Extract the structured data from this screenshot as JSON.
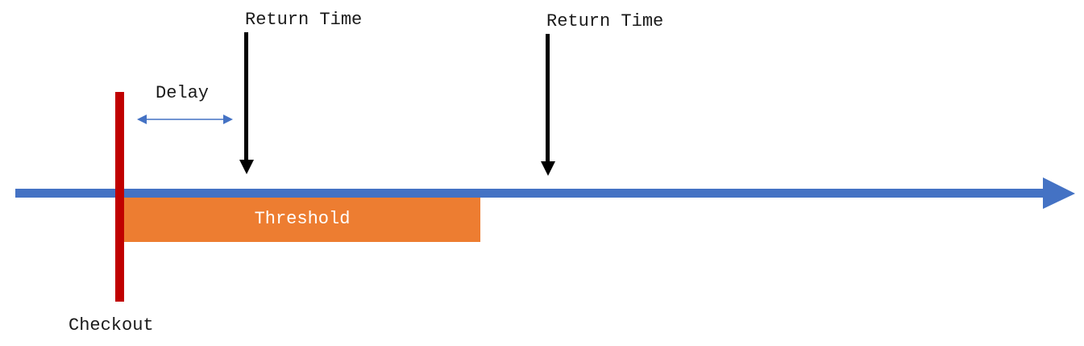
{
  "labels": {
    "return_time_1": "Return Time",
    "return_time_2": "Return Time",
    "delay": "Delay",
    "threshold": "Threshold",
    "checkout": "Checkout"
  },
  "colors": {
    "timeline": "#4472C4",
    "checkout_line": "#C00000",
    "threshold_bar": "#ED7D31",
    "return_arrow": "#000000",
    "delay_arrow": "#4472C4",
    "threshold_text": "#FFFFFF"
  },
  "icons": {
    "timeline": "timeline-arrow-icon",
    "return_marker": "down-arrow-icon",
    "delay_span": "double-headed-arrow-icon"
  }
}
